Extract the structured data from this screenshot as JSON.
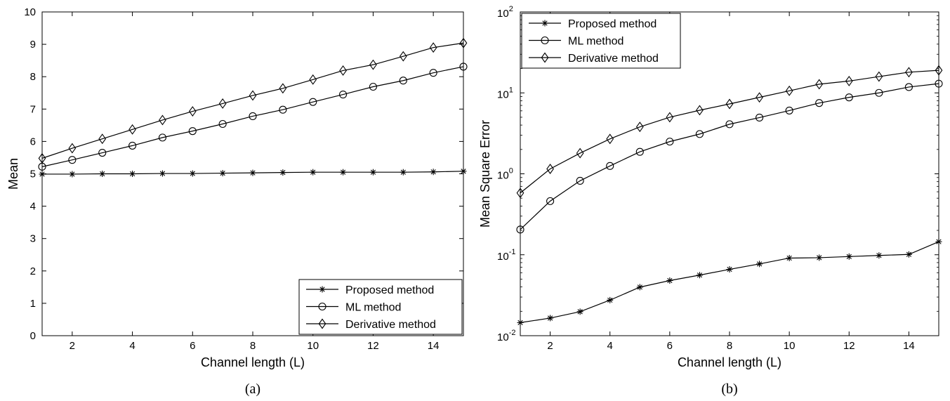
{
  "chart_data": [
    {
      "type": "line",
      "caption": "(a)",
      "xlabel": "Channel length (L)",
      "ylabel": "Mean",
      "xlim": [
        1,
        15
      ],
      "ylim": [
        0,
        10
      ],
      "xticks": [
        2,
        4,
        6,
        8,
        10,
        12,
        14
      ],
      "xtick_labels": [
        "2",
        "4",
        "6",
        "8",
        "10",
        "12",
        "14"
      ],
      "yticks": [
        0,
        1,
        2,
        3,
        4,
        5,
        6,
        7,
        8,
        9,
        10
      ],
      "ytick_labels": [
        "0",
        "1",
        "2",
        "3",
        "4",
        "5",
        "6",
        "7",
        "8",
        "9",
        "10"
      ],
      "yscale": "linear",
      "grid": false,
      "legend_position": "bottom-right",
      "x": [
        1,
        2,
        3,
        4,
        5,
        6,
        7,
        8,
        9,
        10,
        11,
        12,
        13,
        14,
        15
      ],
      "series": [
        {
          "name": "Proposed method",
          "marker": "star",
          "values": [
            4.99,
            4.99,
            5.0,
            5.0,
            5.01,
            5.01,
            5.02,
            5.03,
            5.04,
            5.05,
            5.05,
            5.05,
            5.05,
            5.06,
            5.08
          ]
        },
        {
          "name": "ML method",
          "marker": "circle",
          "values": [
            5.22,
            5.43,
            5.65,
            5.87,
            6.12,
            6.32,
            6.54,
            6.78,
            6.98,
            7.22,
            7.45,
            7.69,
            7.88,
            8.12,
            8.31
          ]
        },
        {
          "name": "Derivative method",
          "marker": "diamond",
          "values": [
            5.48,
            5.79,
            6.08,
            6.37,
            6.66,
            6.93,
            7.17,
            7.42,
            7.64,
            7.91,
            8.19,
            8.37,
            8.63,
            8.9,
            9.04
          ]
        }
      ]
    },
    {
      "type": "line",
      "caption": "(b)",
      "xlabel": "Channel length (L)",
      "ylabel": "Mean Square Error",
      "xlim": [
        1,
        15
      ],
      "ylim": [
        0.01,
        100
      ],
      "xticks": [
        2,
        4,
        6,
        8,
        10,
        12,
        14
      ],
      "xtick_labels": [
        "2",
        "4",
        "6",
        "8",
        "10",
        "12",
        "14"
      ],
      "yticks": [
        0.01,
        0.1,
        1,
        10,
        100
      ],
      "ytick_labels": [
        {
          "base": "10",
          "exp": "-2"
        },
        {
          "base": "10",
          "exp": "-1"
        },
        {
          "base": "10",
          "exp": "0"
        },
        {
          "base": "10",
          "exp": "1"
        },
        {
          "base": "10",
          "exp": "2"
        }
      ],
      "yscale": "log",
      "grid": false,
      "legend_position": "top-left",
      "x": [
        1,
        2,
        3,
        4,
        5,
        6,
        7,
        8,
        9,
        10,
        11,
        12,
        13,
        14,
        15
      ],
      "series": [
        {
          "name": "Proposed method",
          "marker": "star",
          "values": [
            0.0145,
            0.0165,
            0.0198,
            0.0275,
            0.0398,
            0.048,
            0.056,
            0.066,
            0.077,
            0.091,
            0.092,
            0.095,
            0.098,
            0.101,
            0.145
          ]
        },
        {
          "name": "ML method",
          "marker": "circle",
          "values": [
            0.205,
            0.46,
            0.82,
            1.25,
            1.87,
            2.5,
            3.1,
            4.1,
            4.95,
            6.05,
            7.5,
            8.8,
            10.0,
            11.8,
            13.0
          ]
        },
        {
          "name": "Derivative method",
          "marker": "diamond",
          "values": [
            0.58,
            1.15,
            1.8,
            2.7,
            3.8,
            5.0,
            6.1,
            7.3,
            8.8,
            10.6,
            12.8,
            14.0,
            15.9,
            18.0,
            19.0
          ]
        }
      ]
    }
  ]
}
